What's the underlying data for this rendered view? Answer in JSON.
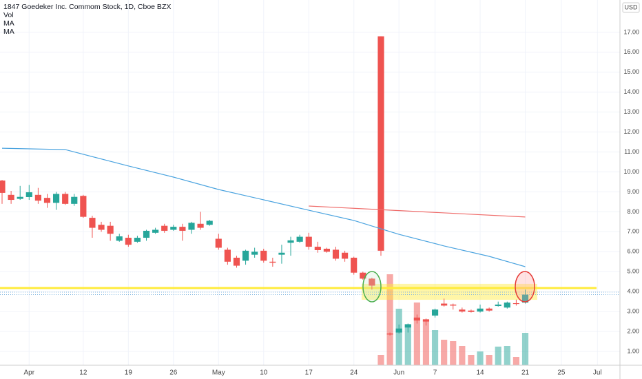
{
  "chart_data": {
    "type": "candlestick",
    "title": "1847 Goedeker Inc. Commom Stock, 1D, Cboe BZX",
    "indicator_labels": [
      "Vol",
      "MA",
      "MA"
    ],
    "currency": "USD",
    "up_color": "#26a69a",
    "down_color": "#ef5350",
    "xlim": [
      -0.23,
      68.5
    ],
    "xticks": [
      {
        "value": 3,
        "label": "Apr"
      },
      {
        "value": 9,
        "label": "12"
      },
      {
        "value": 14,
        "label": "19"
      },
      {
        "value": 19,
        "label": "26"
      },
      {
        "value": 24,
        "label": "May"
      },
      {
        "value": 29,
        "label": "10"
      },
      {
        "value": 34,
        "label": "17"
      },
      {
        "value": 39,
        "label": "24"
      },
      {
        "value": 44,
        "label": "Jun"
      },
      {
        "value": 48,
        "label": "7"
      },
      {
        "value": 53,
        "label": "14"
      },
      {
        "value": 58,
        "label": "21"
      },
      {
        "value": 62,
        "label": "25"
      },
      {
        "value": 66,
        "label": "Jul"
      }
    ],
    "ylim": [
      0.31,
      18.62
    ],
    "yticks": [
      {
        "value": 1,
        "label": "1.00"
      },
      {
        "value": 2,
        "label": "2.00"
      },
      {
        "value": 3,
        "label": "3.00"
      },
      {
        "value": 4,
        "label": "4.00"
      },
      {
        "value": 5,
        "label": "5.00"
      },
      {
        "value": 6,
        "label": "6.00"
      },
      {
        "value": 7,
        "label": "7.00"
      },
      {
        "value": 8,
        "label": "8.00"
      },
      {
        "value": 9,
        "label": "9.00"
      },
      {
        "value": 10,
        "label": "10.00"
      },
      {
        "value": 11,
        "label": "11.00"
      },
      {
        "value": 12,
        "label": "12.00"
      },
      {
        "value": 13,
        "label": "13.00"
      },
      {
        "value": 14,
        "label": "14.00"
      },
      {
        "value": 15,
        "label": "15.00"
      },
      {
        "value": 16,
        "label": "16.00"
      },
      {
        "value": 17,
        "label": "17.00"
      }
    ],
    "grid": true,
    "candles": {
      "open": [
        9.57,
        8.85,
        8.65,
        8.74,
        8.85,
        8.7,
        8.45,
        8.9,
        8.4,
        8.8,
        7.7,
        7.35,
        7.3,
        6.55,
        6.7,
        6.5,
        6.7,
        6.95,
        7.3,
        7.1,
        7.25,
        7.1,
        7.4,
        7.35,
        6.65,
        6.1,
        5.7,
        5.55,
        5.85,
        6.05,
        5.5,
        5.85,
        6.45,
        6.5,
        6.75,
        6.25,
        6.15,
        6.1,
        5.95,
        5.7,
        4.95,
        4.65,
        16.8,
        1.9,
        1.95,
        2.2,
        2.7,
        2.6,
        2.8,
        3.4,
        3.35,
        3.1,
        3.05,
        3.0,
        3.15,
        3.28,
        3.2,
        3.42,
        3.45
      ],
      "high": [
        9.6,
        9.05,
        9.3,
        9.35,
        9.2,
        8.9,
        9.0,
        9.0,
        8.9,
        8.85,
        7.8,
        7.5,
        7.5,
        6.9,
        6.85,
        6.8,
        7.1,
        7.2,
        7.4,
        7.35,
        7.4,
        7.5,
        8.0,
        7.6,
        6.9,
        6.2,
        5.8,
        6.1,
        6.2,
        6.15,
        5.7,
        6.35,
        6.75,
        6.85,
        6.95,
        6.5,
        6.2,
        6.25,
        6.05,
        5.75,
        5.0,
        4.7,
        16.8,
        1.95,
        2.35,
        2.4,
        2.85,
        2.65,
        3.15,
        3.65,
        3.4,
        3.2,
        3.1,
        3.35,
        3.2,
        3.5,
        3.5,
        3.6,
        4.1
      ],
      "low": [
        8.4,
        8.4,
        8.6,
        8.6,
        8.4,
        8.2,
        8.1,
        8.35,
        8.3,
        7.7,
        6.7,
        7.0,
        6.55,
        6.5,
        6.25,
        6.45,
        6.55,
        6.9,
        6.95,
        7.05,
        6.55,
        6.9,
        7.1,
        7.3,
        6.1,
        5.35,
        5.2,
        5.35,
        5.7,
        5.45,
        5.25,
        5.4,
        5.8,
        6.45,
        6.1,
        5.95,
        5.95,
        5.55,
        5.5,
        4.85,
        4.6,
        4.1,
        5.8,
        1.8,
        1.9,
        1.95,
        2.4,
        2.3,
        2.7,
        3.25,
        3.1,
        2.95,
        2.95,
        2.95,
        3.0,
        3.25,
        3.15,
        3.3,
        3.4
      ],
      "close": [
        8.95,
        8.6,
        8.75,
        8.98,
        8.56,
        8.45,
        8.9,
        8.4,
        8.75,
        7.75,
        7.2,
        7.1,
        6.9,
        6.77,
        6.35,
        6.7,
        7.05,
        7.1,
        7.05,
        7.25,
        7.05,
        7.45,
        7.2,
        7.55,
        6.2,
        5.5,
        5.3,
        6.05,
        6.0,
        5.55,
        5.45,
        5.95,
        6.57,
        6.75,
        6.25,
        6.08,
        6.0,
        5.65,
        5.65,
        4.95,
        4.65,
        4.3,
        6.05,
        1.85,
        2.15,
        2.35,
        2.55,
        2.5,
        3.1,
        3.3,
        3.3,
        3.0,
        2.98,
        3.15,
        3.05,
        3.35,
        3.45,
        3.38,
        3.85
      ],
      "volume": [
        null,
        null,
        null,
        null,
        null,
        null,
        null,
        null,
        null,
        null,
        null,
        null,
        null,
        null,
        null,
        null,
        null,
        null,
        null,
        null,
        null,
        null,
        null,
        null,
        null,
        null,
        null,
        null,
        null,
        null,
        null,
        null,
        null,
        null,
        null,
        null,
        null,
        null,
        null,
        null,
        null,
        null,
        15,
        132,
        82,
        60,
        91,
        67,
        51,
        37,
        35,
        28,
        15,
        20,
        15,
        27,
        28,
        12,
        47
      ]
    },
    "series": [
      {
        "color": "#4aa3df",
        "x": [
          0,
          7,
          14,
          19,
          24,
          29,
          34,
          39,
          44,
          49,
          54,
          58
        ],
        "values": [
          11.19,
          11.12,
          10.3,
          9.74,
          9.12,
          8.6,
          8.08,
          7.57,
          6.87,
          6.29,
          5.77,
          5.25
        ]
      },
      {
        "color": "#ef6c6a",
        "x": [
          34,
          58
        ],
        "values": [
          8.29,
          7.74
        ]
      }
    ],
    "hline": {
      "value": 4.18,
      "color": "#ffeb3b"
    },
    "band": {
      "range": [
        3.59,
        4.39
      ],
      "color": "rgba(255,235,59,0.45)"
    },
    "price_lines": [
      3.97,
      3.85
    ]
  }
}
